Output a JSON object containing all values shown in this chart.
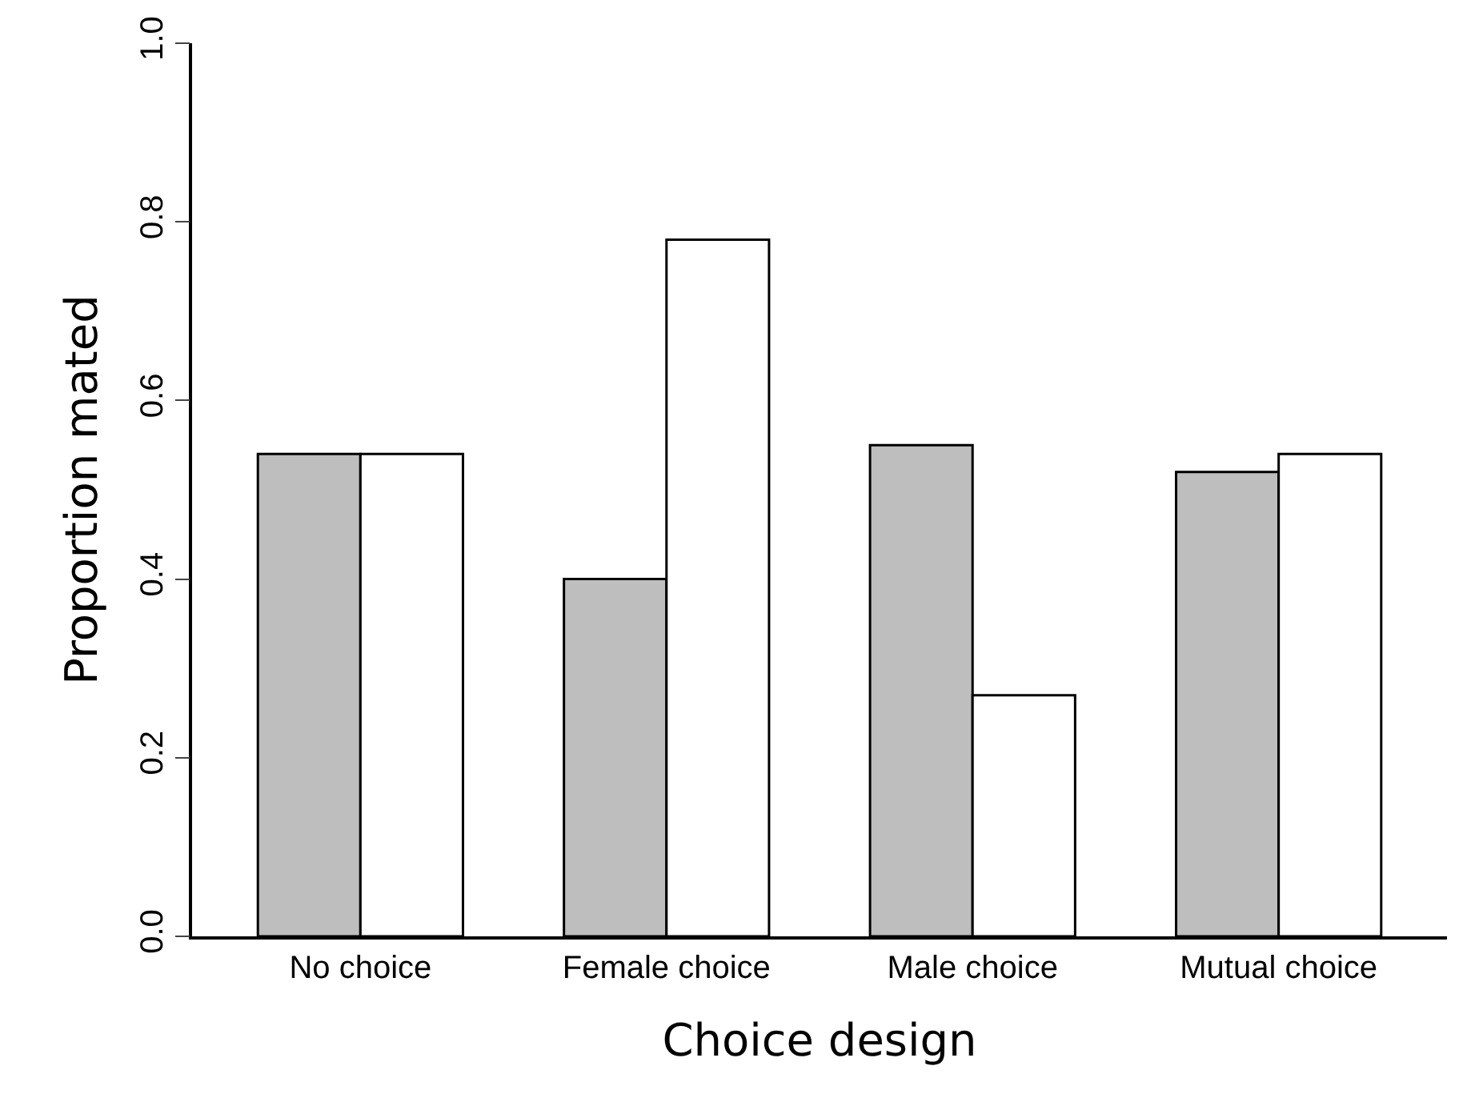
{
  "chart_data": {
    "type": "bar",
    "xlabel": "Choice design",
    "ylabel": "Proportion mated",
    "categories": [
      "No choice",
      "Female choice",
      "Male choice",
      "Mutual choice"
    ],
    "series": [
      {
        "color": "#bebebe",
        "values": [
          0.54,
          0.4,
          0.55,
          0.52
        ]
      },
      {
        "color": "#ffffff",
        "values": [
          0.54,
          0.78,
          0.27,
          0.54
        ]
      }
    ],
    "ylim": [
      0,
      1
    ],
    "yticks": [
      {
        "value": 0,
        "label": "0.0"
      },
      0.2,
      0.4,
      0.6,
      0.8,
      {
        "value": 1,
        "label": "1.0"
      }
    ]
  }
}
